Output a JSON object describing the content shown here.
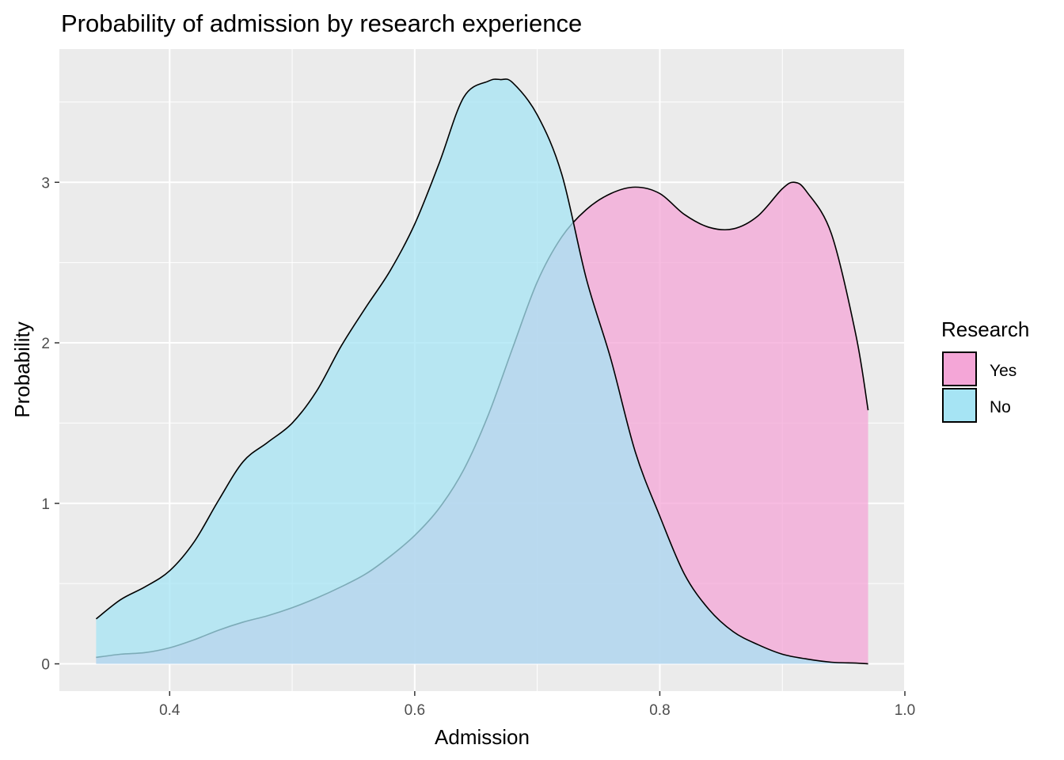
{
  "chart_data": {
    "type": "area",
    "title": "Probability of admission by research experience",
    "xlabel": "Admission",
    "ylabel": "Probability",
    "xlim": [
      0.31,
      1.0
    ],
    "ylim": [
      -0.17,
      3.83
    ],
    "x_ticks": [
      0.4,
      0.6,
      0.8,
      1.0
    ],
    "x_tick_labels": [
      "0.4",
      "0.6",
      "0.8",
      "1.0"
    ],
    "y_ticks": [
      0,
      1,
      2,
      3
    ],
    "y_tick_labels": [
      "0",
      "1",
      "2",
      "3"
    ],
    "grid": true,
    "legend": {
      "title": "Research",
      "position": "right"
    },
    "series": [
      {
        "name": "Yes",
        "color": "#f4a6d7",
        "x": [
          0.34,
          0.36,
          0.38,
          0.4,
          0.42,
          0.44,
          0.46,
          0.48,
          0.5,
          0.52,
          0.54,
          0.56,
          0.58,
          0.6,
          0.62,
          0.64,
          0.66,
          0.68,
          0.7,
          0.72,
          0.74,
          0.76,
          0.78,
          0.8,
          0.82,
          0.84,
          0.86,
          0.88,
          0.9,
          0.91,
          0.92,
          0.94,
          0.96,
          0.97
        ],
        "values": [
          0.04,
          0.06,
          0.07,
          0.1,
          0.15,
          0.21,
          0.26,
          0.3,
          0.35,
          0.41,
          0.48,
          0.56,
          0.67,
          0.8,
          0.97,
          1.21,
          1.55,
          1.97,
          2.38,
          2.66,
          2.83,
          2.93,
          2.97,
          2.93,
          2.8,
          2.72,
          2.71,
          2.79,
          2.96,
          3.0,
          2.94,
          2.68,
          2.05,
          1.58
        ]
      },
      {
        "name": "No",
        "color": "#a6e4f4",
        "x": [
          0.34,
          0.36,
          0.38,
          0.4,
          0.42,
          0.44,
          0.46,
          0.48,
          0.5,
          0.52,
          0.54,
          0.56,
          0.58,
          0.6,
          0.62,
          0.64,
          0.66,
          0.67,
          0.68,
          0.7,
          0.72,
          0.74,
          0.76,
          0.78,
          0.8,
          0.82,
          0.84,
          0.86,
          0.88,
          0.9,
          0.92,
          0.94,
          0.96,
          0.97
        ],
        "values": [
          0.28,
          0.4,
          0.48,
          0.58,
          0.76,
          1.02,
          1.26,
          1.38,
          1.5,
          1.7,
          1.98,
          2.22,
          2.45,
          2.74,
          3.12,
          3.53,
          3.63,
          3.64,
          3.62,
          3.42,
          3.05,
          2.4,
          1.9,
          1.32,
          0.92,
          0.56,
          0.34,
          0.2,
          0.12,
          0.06,
          0.03,
          0.01,
          0.005,
          0.0
        ]
      }
    ]
  }
}
